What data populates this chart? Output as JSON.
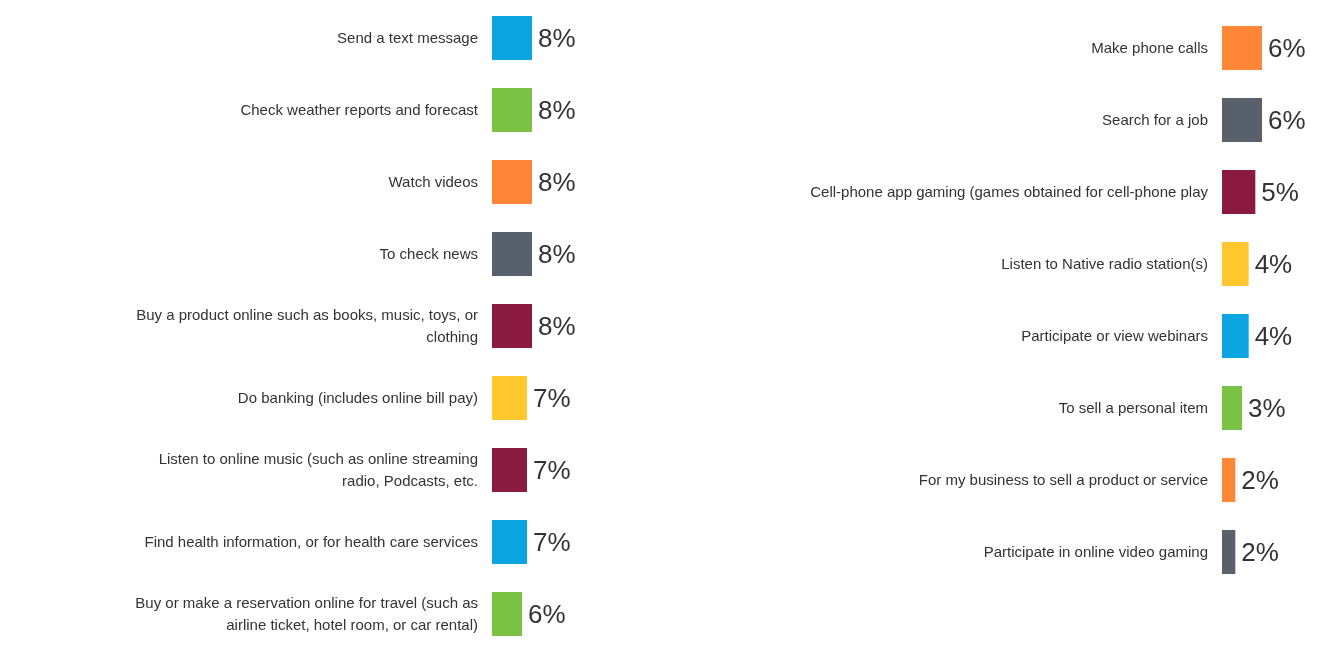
{
  "chart_data": [
    {
      "type": "bar",
      "orientation": "horizontal",
      "categories": [
        "Send a text message",
        "Check weather reports and forecast",
        "Watch videos",
        "To check news",
        "Buy a product online such as books, music, toys, or clothing",
        "Do banking (includes online bill pay)",
        "Listen to online music (such as online streaming radio, Podcasts, etc.",
        "Find health information, or for health care services",
        "Buy or make a reservation online for travel (such as airline ticket, hotel room, or car rental)"
      ],
      "values": [
        8,
        8,
        8,
        8,
        8,
        7,
        7,
        7,
        6
      ],
      "colors": [
        "#0ba5e1",
        "#7bc143",
        "#fe8636",
        "#58616b",
        "#8a1a40",
        "#fec82e",
        "#8a1a40",
        "#0ba5e1",
        "#7bc143"
      ],
      "value_labels": [
        "8%",
        "8%",
        "8%",
        "8%",
        "8%",
        "7%",
        "7%",
        "7%",
        "6%"
      ]
    },
    {
      "type": "bar",
      "orientation": "horizontal",
      "categories": [
        "Make phone calls",
        "Search for a job",
        "Cell-phone app gaming (games obtained for cell-phone play",
        "Listen to Native radio station(s)",
        "Participate or view webinars",
        "To sell a personal item",
        "For my business to sell a product or service",
        "Participate in online video gaming"
      ],
      "values": [
        6,
        6,
        5,
        4,
        4,
        3,
        2,
        2
      ],
      "colors": [
        "#fe8636",
        "#58616b",
        "#8a1a40",
        "#fec82e",
        "#0ba5e1",
        "#7bc143",
        "#fe8636",
        "#58616b"
      ],
      "value_labels": [
        "6%",
        "6%",
        "5%",
        "4%",
        "4%",
        "3%",
        "2%",
        "2%"
      ]
    }
  ]
}
